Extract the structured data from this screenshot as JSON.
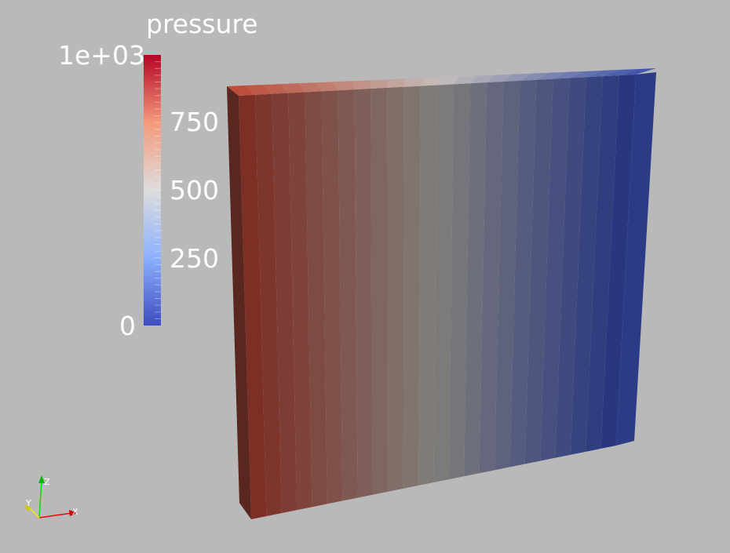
{
  "colorbar": {
    "title": "pressure",
    "tick_labels": {
      "max": "1e+03",
      "t750": "750",
      "t500": "500",
      "t250": "250",
      "min": "0"
    },
    "range": [
      0,
      1000
    ],
    "colormap": [
      "#3b4cc0",
      "#b8d0f9",
      "#dddddd",
      "#f5c4ad",
      "#b40426"
    ]
  },
  "orientation_axes": {
    "x_label": "X",
    "y_label": "Y",
    "z_label": "Z",
    "x_color": "#ff0000",
    "y_color": "#ffff00",
    "z_color": "#00ff00"
  },
  "scene": {
    "background": "#b9b9b9",
    "object": "slab colored by pressure, high on left to low on right",
    "band_count": 24
  }
}
